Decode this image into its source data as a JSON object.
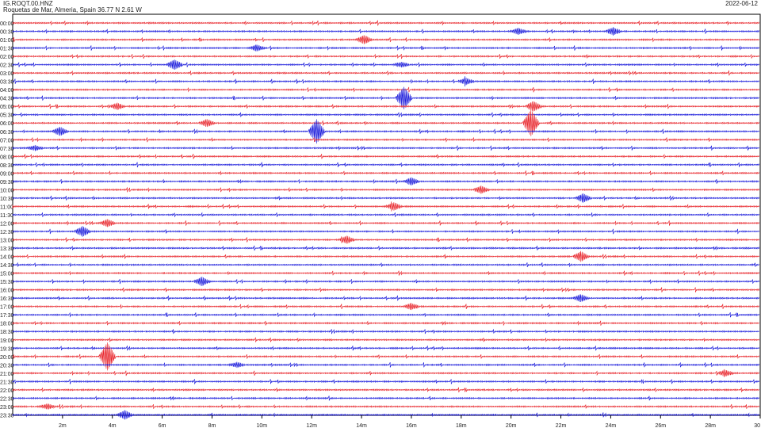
{
  "header": {
    "station_code": "IG.ROQT.00.HNZ",
    "location": "Roquetas de Mar, Almeria, Spain  36.77 N 2.61 W",
    "date": "2022-06-12"
  },
  "colors": {
    "red_trace": "#e8242a",
    "blue_trace": "#1a1adb",
    "axis": "#000000"
  },
  "chart_data": {
    "type": "line",
    "title": "",
    "xlabel": "",
    "ylabel": "",
    "xlim": [
      0,
      30
    ],
    "x_tick_labels": [
      "2m",
      "4m",
      "6m",
      "8m",
      "10m",
      "12m",
      "14m",
      "16m",
      "18m",
      "20m",
      "22m",
      "24m",
      "26m",
      "28m",
      "30"
    ],
    "x_ticks": [
      2,
      4,
      6,
      8,
      10,
      12,
      14,
      16,
      18,
      20,
      22,
      24,
      26,
      28,
      30
    ],
    "row_labels": [
      "00:00",
      "00:30",
      "01:00",
      "01:30",
      "02:00",
      "02:30",
      "03:00",
      "03:30",
      "04:00",
      "04:30",
      "05:00",
      "05:30",
      "06:00",
      "06:30",
      "07:00",
      "07:30",
      "08:00",
      "08:30",
      "09:00",
      "09:30",
      "10:00",
      "10:30",
      "11:00",
      "11:30",
      "12:00",
      "12:30",
      "13:00",
      "13:30",
      "14:00",
      "14:30",
      "15:00",
      "15:30",
      "16:00",
      "16:30",
      "17:00",
      "17:30",
      "18:00",
      "18:30",
      "19:00",
      "19:30",
      "20:00",
      "20:30",
      "21:00",
      "21:30",
      "22:00",
      "22:30",
      "23:00",
      "23:30"
    ],
    "row_colors": [
      "red",
      "blue"
    ],
    "events": [
      {
        "row": "00:30",
        "minute": 20.3,
        "amplitude": 0.5
      },
      {
        "row": "00:30",
        "minute": 24.1,
        "amplitude": 0.6
      },
      {
        "row": "01:00",
        "minute": 14.1,
        "amplitude": 0.7
      },
      {
        "row": "01:30",
        "minute": 9.8,
        "amplitude": 0.5
      },
      {
        "row": "02:30",
        "minute": 6.5,
        "amplitude": 0.8
      },
      {
        "row": "02:30",
        "minute": 15.6,
        "amplitude": 0.4
      },
      {
        "row": "03:30",
        "minute": 18.2,
        "amplitude": 0.5
      },
      {
        "row": "04:30",
        "minute": 15.7,
        "amplitude": 1.8
      },
      {
        "row": "05:00",
        "minute": 4.2,
        "amplitude": 0.5
      },
      {
        "row": "05:00",
        "minute": 20.9,
        "amplitude": 0.8
      },
      {
        "row": "06:00",
        "minute": 20.8,
        "amplitude": 2.2
      },
      {
        "row": "06:00",
        "minute": 7.8,
        "amplitude": 0.6
      },
      {
        "row": "06:30",
        "minute": 12.2,
        "amplitude": 2.0
      },
      {
        "row": "06:30",
        "minute": 1.9,
        "amplitude": 0.7
      },
      {
        "row": "07:30",
        "minute": 0.9,
        "amplitude": 0.4
      },
      {
        "row": "09:30",
        "minute": 16.0,
        "amplitude": 0.6
      },
      {
        "row": "10:00",
        "minute": 18.8,
        "amplitude": 0.6
      },
      {
        "row": "10:30",
        "minute": 22.9,
        "amplitude": 0.7
      },
      {
        "row": "11:00",
        "minute": 15.3,
        "amplitude": 0.6
      },
      {
        "row": "12:00",
        "minute": 3.8,
        "amplitude": 0.6
      },
      {
        "row": "12:30",
        "minute": 2.8,
        "amplitude": 0.8
      },
      {
        "row": "13:00",
        "minute": 13.4,
        "amplitude": 0.6
      },
      {
        "row": "14:00",
        "minute": 22.8,
        "amplitude": 0.8
      },
      {
        "row": "15:30",
        "minute": 7.6,
        "amplitude": 0.7
      },
      {
        "row": "16:30",
        "minute": 22.8,
        "amplitude": 0.6
      },
      {
        "row": "17:00",
        "minute": 16.0,
        "amplitude": 0.5
      },
      {
        "row": "20:00",
        "minute": 3.8,
        "amplitude": 2.3
      },
      {
        "row": "20:30",
        "minute": 9.0,
        "amplitude": 0.4
      },
      {
        "row": "21:00",
        "minute": 28.6,
        "amplitude": 0.5
      },
      {
        "row": "23:00",
        "minute": 1.4,
        "amplitude": 0.4
      },
      {
        "row": "23:30",
        "minute": 4.5,
        "amplitude": 0.7
      }
    ]
  }
}
